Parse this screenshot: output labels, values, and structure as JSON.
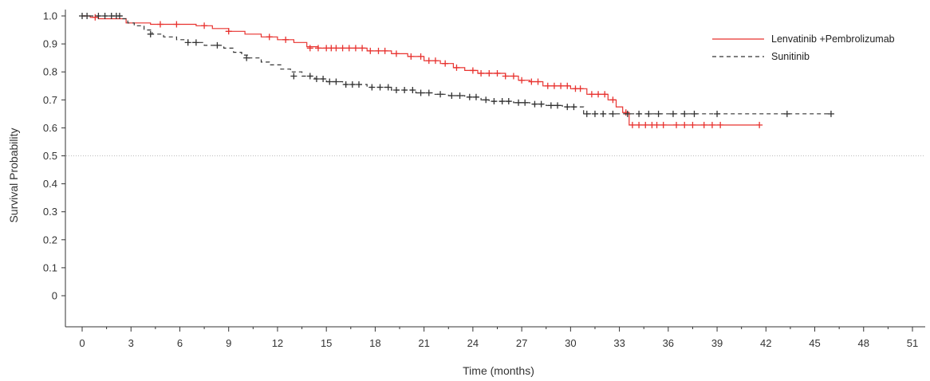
{
  "chart_data": {
    "type": "line",
    "chart_kind": "kaplan-meier",
    "xlabel": "Time (months)",
    "ylabel": "Survival Probability",
    "xlim": [
      0,
      51
    ],
    "ylim": [
      0,
      1.0
    ],
    "x_ticks": [
      "0",
      "3",
      "6",
      "9",
      "12",
      "15",
      "18",
      "21",
      "24",
      "27",
      "30",
      "33",
      "36",
      "39",
      "42",
      "45",
      "48",
      "51"
    ],
    "y_ticks": [
      "0",
      "0.1",
      "0.2",
      "0.3",
      "0.4",
      "0.5",
      "0.6",
      "0.7",
      "0.8",
      "0.9",
      "1.0"
    ],
    "reference_line": {
      "y": 0.5,
      "style": "dotted"
    },
    "legend_position": "top-right",
    "series": [
      {
        "name": "Lenvatinib +Pembrolizumab",
        "color": "#e8322f",
        "line_style": "solid",
        "steps": [
          [
            0,
            1.0
          ],
          [
            0.5,
            0.995
          ],
          [
            1.0,
            0.99
          ],
          [
            2.7,
            0.975
          ],
          [
            4.2,
            0.97
          ],
          [
            7.0,
            0.965
          ],
          [
            8.0,
            0.955
          ],
          [
            9.0,
            0.945
          ],
          [
            10.0,
            0.935
          ],
          [
            11.0,
            0.925
          ],
          [
            12.0,
            0.915
          ],
          [
            13.0,
            0.905
          ],
          [
            13.8,
            0.89
          ],
          [
            14.5,
            0.885
          ],
          [
            17.5,
            0.875
          ],
          [
            19.0,
            0.865
          ],
          [
            20.0,
            0.855
          ],
          [
            21.0,
            0.84
          ],
          [
            22.0,
            0.83
          ],
          [
            22.8,
            0.815
          ],
          [
            23.5,
            0.805
          ],
          [
            24.3,
            0.795
          ],
          [
            26.0,
            0.785
          ],
          [
            26.8,
            0.77
          ],
          [
            27.5,
            0.765
          ],
          [
            28.3,
            0.75
          ],
          [
            30.0,
            0.74
          ],
          [
            31.0,
            0.72
          ],
          [
            32.3,
            0.7
          ],
          [
            32.8,
            0.675
          ],
          [
            33.2,
            0.655
          ],
          [
            33.6,
            0.61
          ],
          [
            41.6,
            0.61
          ]
        ],
        "censored": [
          [
            0.8,
            0.995
          ],
          [
            4.8,
            0.97
          ],
          [
            5.8,
            0.97
          ],
          [
            7.5,
            0.965
          ],
          [
            9.0,
            0.945
          ],
          [
            11.5,
            0.925
          ],
          [
            12.5,
            0.915
          ],
          [
            14.0,
            0.885
          ],
          [
            14.5,
            0.885
          ],
          [
            15.0,
            0.885
          ],
          [
            15.3,
            0.885
          ],
          [
            15.6,
            0.885
          ],
          [
            16.0,
            0.885
          ],
          [
            16.4,
            0.885
          ],
          [
            16.8,
            0.885
          ],
          [
            17.2,
            0.885
          ],
          [
            17.7,
            0.875
          ],
          [
            18.2,
            0.875
          ],
          [
            18.6,
            0.875
          ],
          [
            19.3,
            0.865
          ],
          [
            20.2,
            0.855
          ],
          [
            20.8,
            0.855
          ],
          [
            21.3,
            0.84
          ],
          [
            21.7,
            0.84
          ],
          [
            22.3,
            0.83
          ],
          [
            23.0,
            0.815
          ],
          [
            24.0,
            0.805
          ],
          [
            24.5,
            0.795
          ],
          [
            25.0,
            0.795
          ],
          [
            25.5,
            0.795
          ],
          [
            26.0,
            0.785
          ],
          [
            26.5,
            0.785
          ],
          [
            27.0,
            0.77
          ],
          [
            27.6,
            0.765
          ],
          [
            28.0,
            0.765
          ],
          [
            28.6,
            0.75
          ],
          [
            29.0,
            0.75
          ],
          [
            29.4,
            0.75
          ],
          [
            29.8,
            0.75
          ],
          [
            30.3,
            0.74
          ],
          [
            30.6,
            0.74
          ],
          [
            31.3,
            0.72
          ],
          [
            31.7,
            0.72
          ],
          [
            32.1,
            0.72
          ],
          [
            32.6,
            0.7
          ],
          [
            33.4,
            0.655
          ],
          [
            33.8,
            0.61
          ],
          [
            34.2,
            0.61
          ],
          [
            34.6,
            0.61
          ],
          [
            35.0,
            0.61
          ],
          [
            35.3,
            0.61
          ],
          [
            35.7,
            0.61
          ],
          [
            36.5,
            0.61
          ],
          [
            37.0,
            0.61
          ],
          [
            37.5,
            0.61
          ],
          [
            38.2,
            0.61
          ],
          [
            38.7,
            0.61
          ],
          [
            39.2,
            0.61
          ],
          [
            41.6,
            0.61
          ]
        ]
      },
      {
        "name": "Sunitinib",
        "color": "#333333",
        "line_style": "dashed",
        "steps": [
          [
            0,
            1.0
          ],
          [
            2.5,
            0.99
          ],
          [
            2.8,
            0.975
          ],
          [
            3.2,
            0.965
          ],
          [
            3.8,
            0.95
          ],
          [
            4.3,
            0.935
          ],
          [
            5.0,
            0.925
          ],
          [
            5.8,
            0.915
          ],
          [
            6.5,
            0.905
          ],
          [
            7.5,
            0.895
          ],
          [
            8.7,
            0.885
          ],
          [
            9.3,
            0.87
          ],
          [
            9.8,
            0.86
          ],
          [
            10.2,
            0.85
          ],
          [
            11.0,
            0.835
          ],
          [
            11.5,
            0.825
          ],
          [
            12.2,
            0.81
          ],
          [
            12.8,
            0.8
          ],
          [
            13.5,
            0.785
          ],
          [
            14.3,
            0.775
          ],
          [
            15.0,
            0.765
          ],
          [
            16.0,
            0.755
          ],
          [
            17.5,
            0.745
          ],
          [
            19.0,
            0.735
          ],
          [
            20.5,
            0.725
          ],
          [
            21.5,
            0.72
          ],
          [
            22.5,
            0.715
          ],
          [
            23.5,
            0.71
          ],
          [
            24.5,
            0.7
          ],
          [
            25.0,
            0.695
          ],
          [
            26.5,
            0.69
          ],
          [
            27.5,
            0.685
          ],
          [
            28.5,
            0.68
          ],
          [
            29.5,
            0.675
          ],
          [
            30.8,
            0.65
          ],
          [
            46.0,
            0.65
          ]
        ],
        "censored": [
          [
            0.0,
            1.0
          ],
          [
            0.3,
            1.0
          ],
          [
            1.0,
            1.0
          ],
          [
            1.4,
            1.0
          ],
          [
            1.8,
            1.0
          ],
          [
            2.1,
            1.0
          ],
          [
            2.3,
            1.0
          ],
          [
            4.2,
            0.935
          ],
          [
            6.5,
            0.905
          ],
          [
            7.0,
            0.905
          ],
          [
            8.3,
            0.895
          ],
          [
            10.1,
            0.85
          ],
          [
            13.0,
            0.785
          ],
          [
            14.0,
            0.785
          ],
          [
            14.4,
            0.775
          ],
          [
            14.8,
            0.775
          ],
          [
            15.2,
            0.765
          ],
          [
            15.6,
            0.765
          ],
          [
            16.2,
            0.755
          ],
          [
            16.6,
            0.755
          ],
          [
            17.0,
            0.755
          ],
          [
            17.8,
            0.745
          ],
          [
            18.3,
            0.745
          ],
          [
            18.8,
            0.745
          ],
          [
            19.3,
            0.735
          ],
          [
            19.8,
            0.735
          ],
          [
            20.3,
            0.735
          ],
          [
            20.8,
            0.725
          ],
          [
            21.3,
            0.725
          ],
          [
            22.0,
            0.72
          ],
          [
            22.7,
            0.715
          ],
          [
            23.2,
            0.715
          ],
          [
            23.8,
            0.71
          ],
          [
            24.2,
            0.71
          ],
          [
            24.8,
            0.7
          ],
          [
            25.3,
            0.695
          ],
          [
            25.8,
            0.695
          ],
          [
            26.2,
            0.695
          ],
          [
            26.8,
            0.69
          ],
          [
            27.2,
            0.69
          ],
          [
            27.8,
            0.685
          ],
          [
            28.2,
            0.685
          ],
          [
            28.8,
            0.68
          ],
          [
            29.2,
            0.68
          ],
          [
            29.8,
            0.675
          ],
          [
            30.2,
            0.675
          ],
          [
            31.0,
            0.65
          ],
          [
            31.5,
            0.65
          ],
          [
            32.0,
            0.65
          ],
          [
            32.6,
            0.65
          ],
          [
            33.5,
            0.65
          ],
          [
            34.2,
            0.65
          ],
          [
            34.8,
            0.65
          ],
          [
            35.4,
            0.65
          ],
          [
            36.3,
            0.65
          ],
          [
            37.0,
            0.65
          ],
          [
            37.6,
            0.65
          ],
          [
            39.0,
            0.65
          ],
          [
            43.3,
            0.65
          ],
          [
            46.0,
            0.65
          ]
        ]
      }
    ]
  }
}
